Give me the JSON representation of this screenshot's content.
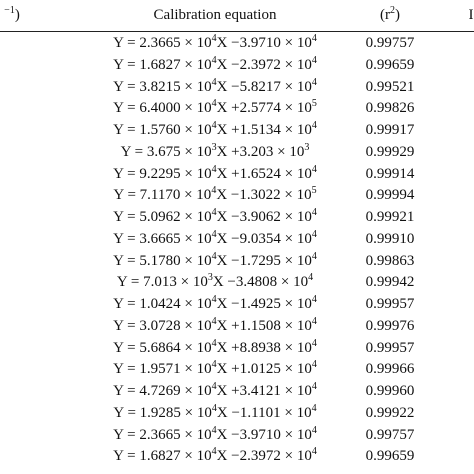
{
  "table": {
    "header": {
      "col0": {
        "sup": "−1",
        "text": ")"
      },
      "col1": [
        "Calibration equation"
      ],
      "col2": [
        "(r",
        "2",
        ")"
      ],
      "col3": [
        "I"
      ]
    },
    "rows": [
      [
        [
          "Y = 2.3665 × 10",
          "4",
          "X −3.9710 × 10",
          "4"
        ],
        "0.99757"
      ],
      [
        [
          "Y = 1.6827 × 10",
          "4",
          "X −2.3972 × 10",
          "4"
        ],
        "0.99659"
      ],
      [
        [
          "Y = 3.8215 × 10",
          "4",
          "X −5.8217 × 10",
          "4"
        ],
        "0.99521"
      ],
      [
        [
          "Y = 6.4000 × 10",
          "4",
          "X +2.5774 × 10",
          "5"
        ],
        "0.99826"
      ],
      [
        [
          "Y = 1.5760 × 10",
          "4",
          "X +1.5134 × 10",
          "4"
        ],
        "0.99917"
      ],
      [
        [
          "Y = 3.675 × 10",
          "3",
          "X +3.203 × 10",
          "3"
        ],
        "0.99929"
      ],
      [
        [
          "Y = 9.2295 × 10",
          "4",
          "X +1.6524 × 10",
          "4"
        ],
        "0.99914"
      ],
      [
        [
          "Y = 7.1170 × 10",
          "4",
          "X −1.3022 × 10",
          "5"
        ],
        "0.99994"
      ],
      [
        [
          "Y = 5.0962 × 10",
          "4",
          "X −3.9062 × 10",
          "4"
        ],
        "0.99921"
      ],
      [
        [
          "Y = 3.6665 × 10",
          "4",
          "X −9.0354 × 10",
          "4"
        ],
        "0.99910"
      ],
      [
        [
          "Y = 5.1780 × 10",
          "4",
          "X −1.7295 × 10",
          "4"
        ],
        "0.99863"
      ],
      [
        [
          "Y = 7.013 × 10",
          "3",
          "X −3.4808 × 10",
          "4"
        ],
        "0.99942"
      ],
      [
        [
          "Y = 1.0424 × 10",
          "4",
          "X −1.4925 × 10",
          "4"
        ],
        "0.99957"
      ],
      [
        [
          "Y = 3.0728 × 10",
          "4",
          "X +1.1508 × 10",
          "4"
        ],
        "0.99976"
      ],
      [
        [
          "Y = 5.6864 × 10",
          "4",
          "X +8.8938 × 10",
          "4"
        ],
        "0.99957"
      ],
      [
        [
          "Y = 1.9571 × 10",
          "4",
          "X +1.0125 × 10",
          "4"
        ],
        "0.99966"
      ],
      [
        [
          "Y = 4.7269 × 10",
          "4",
          "X +3.4121 × 10",
          "4"
        ],
        "0.99960"
      ],
      [
        [
          "Y = 1.9285 × 10",
          "4",
          "X −1.1101 × 10",
          "4"
        ],
        "0.99922"
      ],
      [
        [
          "Y = 2.3665 × 10",
          "4",
          "X −3.9710 × 10",
          "4"
        ],
        "0.99757"
      ],
      [
        [
          "Y = 1.6827 × 10",
          "4",
          "X −2.3972 × 10",
          "4"
        ],
        "0.99659"
      ]
    ]
  }
}
